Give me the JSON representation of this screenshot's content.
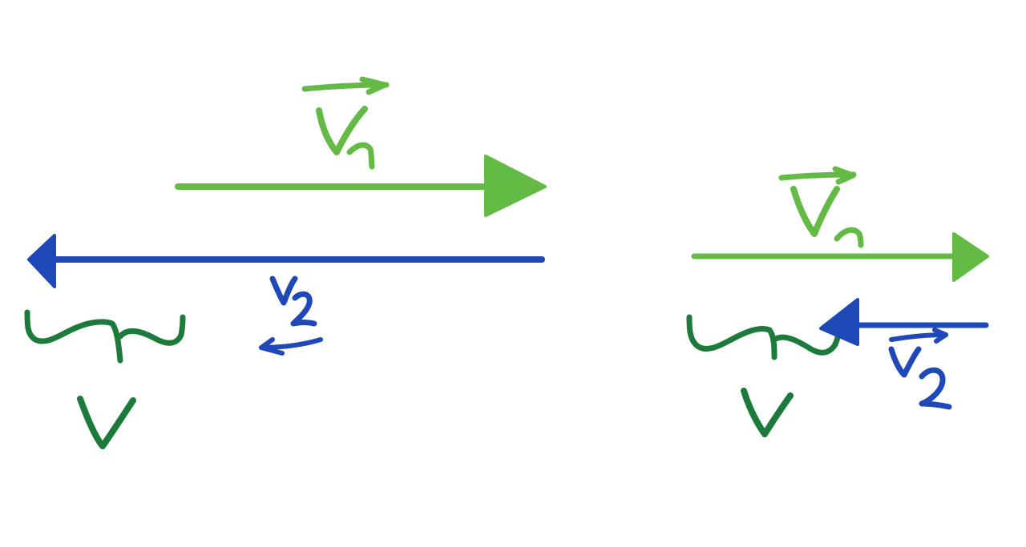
{
  "colors": {
    "light_green": "#63bb45",
    "blue": "#1f48b8",
    "dark_green": "#1c7a3a",
    "background": "#ffffff"
  },
  "left_panel": {
    "v1_label": "V⃗1",
    "v2_label": "v2",
    "brace_label": "V"
  },
  "right_panel": {
    "v1_label": "V⃗1",
    "v2_label": "V⃗2",
    "brace_label": "V"
  }
}
